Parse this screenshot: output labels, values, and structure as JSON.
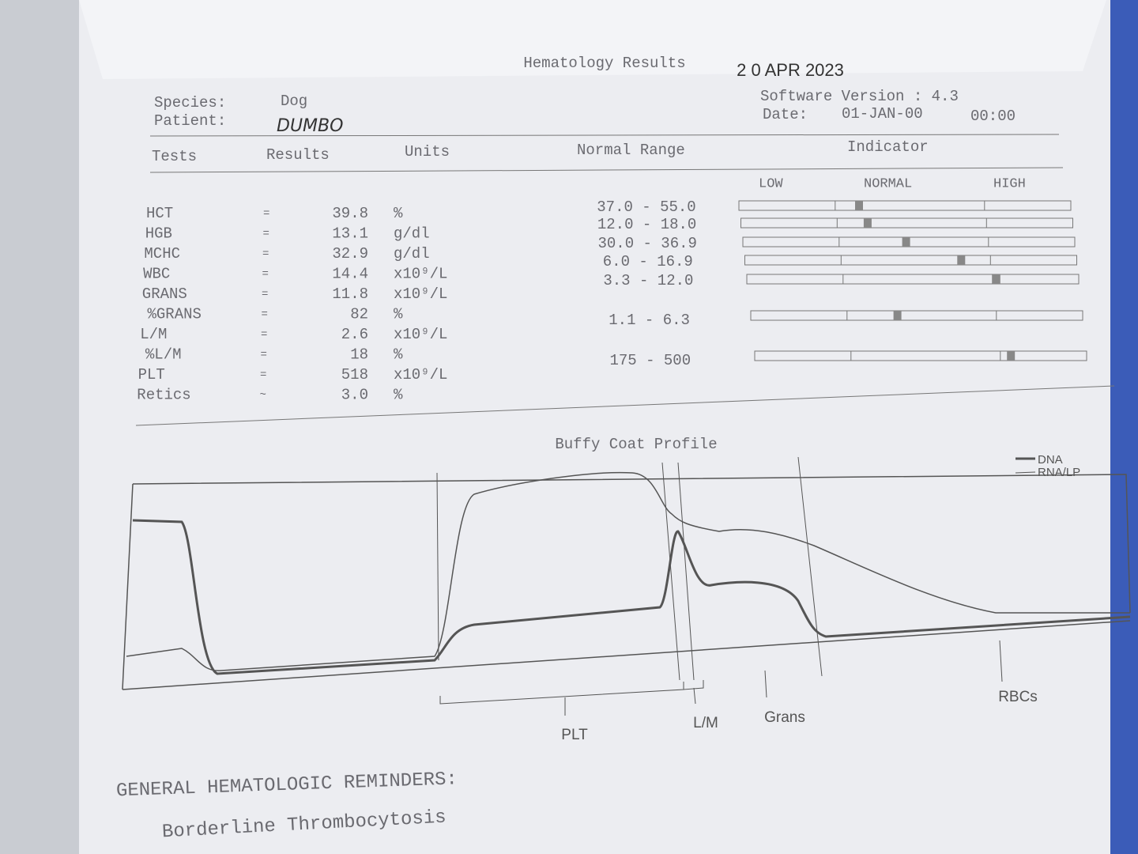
{
  "header": {
    "title": "Hematology Results",
    "stamp": "2 0 APR 2023",
    "species_label": "Species:",
    "species": "Dog",
    "patient_label": "Patient:",
    "patient": "DUMBO",
    "software": "Software Version : 4.3",
    "date_label": "Date:",
    "date": "01-JAN-00",
    "time": "00:00"
  },
  "table": {
    "columns": [
      "Tests",
      "Results",
      "Units",
      "Normal Range",
      "Indicator"
    ],
    "indicator_labels": [
      "LOW",
      "NORMAL",
      "HIGH"
    ],
    "rows": [
      {
        "test": "HCT",
        "sign": "=",
        "result": "39.8",
        "units": "%",
        "range": "37.0 - 55.0"
      },
      {
        "test": "HGB",
        "sign": "=",
        "result": "13.1",
        "units": "g/dl",
        "range": "12.0 - 18.0"
      },
      {
        "test": "MCHC",
        "sign": "=",
        "result": "32.9",
        "units": "g/dl",
        "range": "30.0 - 36.9"
      },
      {
        "test": "WBC",
        "sign": "=",
        "result": "14.4",
        "units": "x10⁹/L",
        "range": "6.0 - 16.9"
      },
      {
        "test": "GRANS",
        "sign": "=",
        "result": "11.8",
        "units": "x10⁹/L",
        "range": "3.3 - 12.0"
      },
      {
        "test": "%GRANS",
        "sign": "=",
        "result": "82",
        "units": "%"
      },
      {
        "test": "L/M",
        "sign": "=",
        "result": "2.6",
        "units": "x10⁹/L",
        "range": "1.1 - 6.3"
      },
      {
        "test": "%L/M",
        "sign": "=",
        "result": "18",
        "units": "%"
      },
      {
        "test": "PLT",
        "sign": "=",
        "result": "518",
        "units": "x10⁹/L",
        "range": "175 - 500"
      },
      {
        "test": "Retics",
        "sign": "~",
        "result": "3.0",
        "units": "%"
      }
    ]
  },
  "profile": {
    "title": "Buffy Coat Profile",
    "legend": [
      "DNA",
      "RNA/LP"
    ],
    "labels": [
      "PLT",
      "L/M",
      "Grans",
      "RBCs"
    ]
  },
  "reminders": {
    "heading": "GENERAL HEMATOLOGIC REMINDERS:",
    "items": [
      "Borderline Thrombocytosis"
    ]
  }
}
